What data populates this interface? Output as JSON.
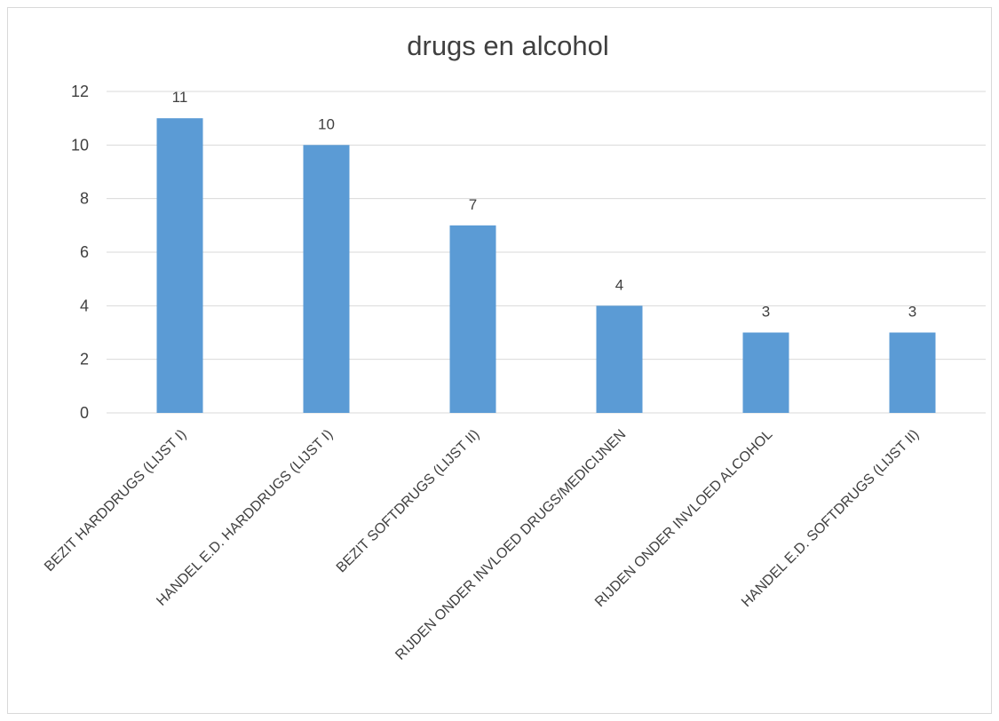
{
  "chart_data": {
    "type": "bar",
    "title": "drugs en alcohol",
    "xlabel": "",
    "ylabel": "",
    "categories": [
      "BEZIT HARDDRUGS (LIJST I)",
      "HANDEL E.D. HARDDRUGS (LIJST I)",
      "BEZIT SOFTDRUGS (LIJST II)",
      "RIJDEN ONDER INVLOED DRUGS/MEDICIJNEN",
      "RIJDEN ONDER INVLOED ALCOHOL",
      "HANDEL E.D. SOFTDRUGS (LIJST II)"
    ],
    "values": [
      11,
      10,
      7,
      4,
      3,
      3
    ],
    "ylim": [
      0,
      12
    ],
    "yticks": [
      0,
      2,
      4,
      6,
      8,
      10,
      12
    ],
    "grid": true,
    "legend": "none",
    "colors": {
      "bar": "#5b9bd5",
      "grid": "#d9d9d9",
      "text": "#404040"
    }
  }
}
